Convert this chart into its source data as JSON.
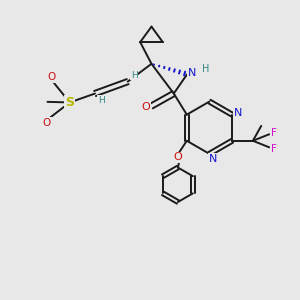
{
  "bg": "#e8e8e8",
  "bc": "#1a1a1a",
  "nc": "#1515cc",
  "oc": "#cc1111",
  "sc": "#b8b800",
  "fc": "#cc11cc",
  "hc": "#338888",
  "figsize": [
    3.0,
    3.0
  ],
  "dpi": 100,
  "xlim": [
    0,
    10
  ],
  "ylim": [
    0,
    10
  ]
}
